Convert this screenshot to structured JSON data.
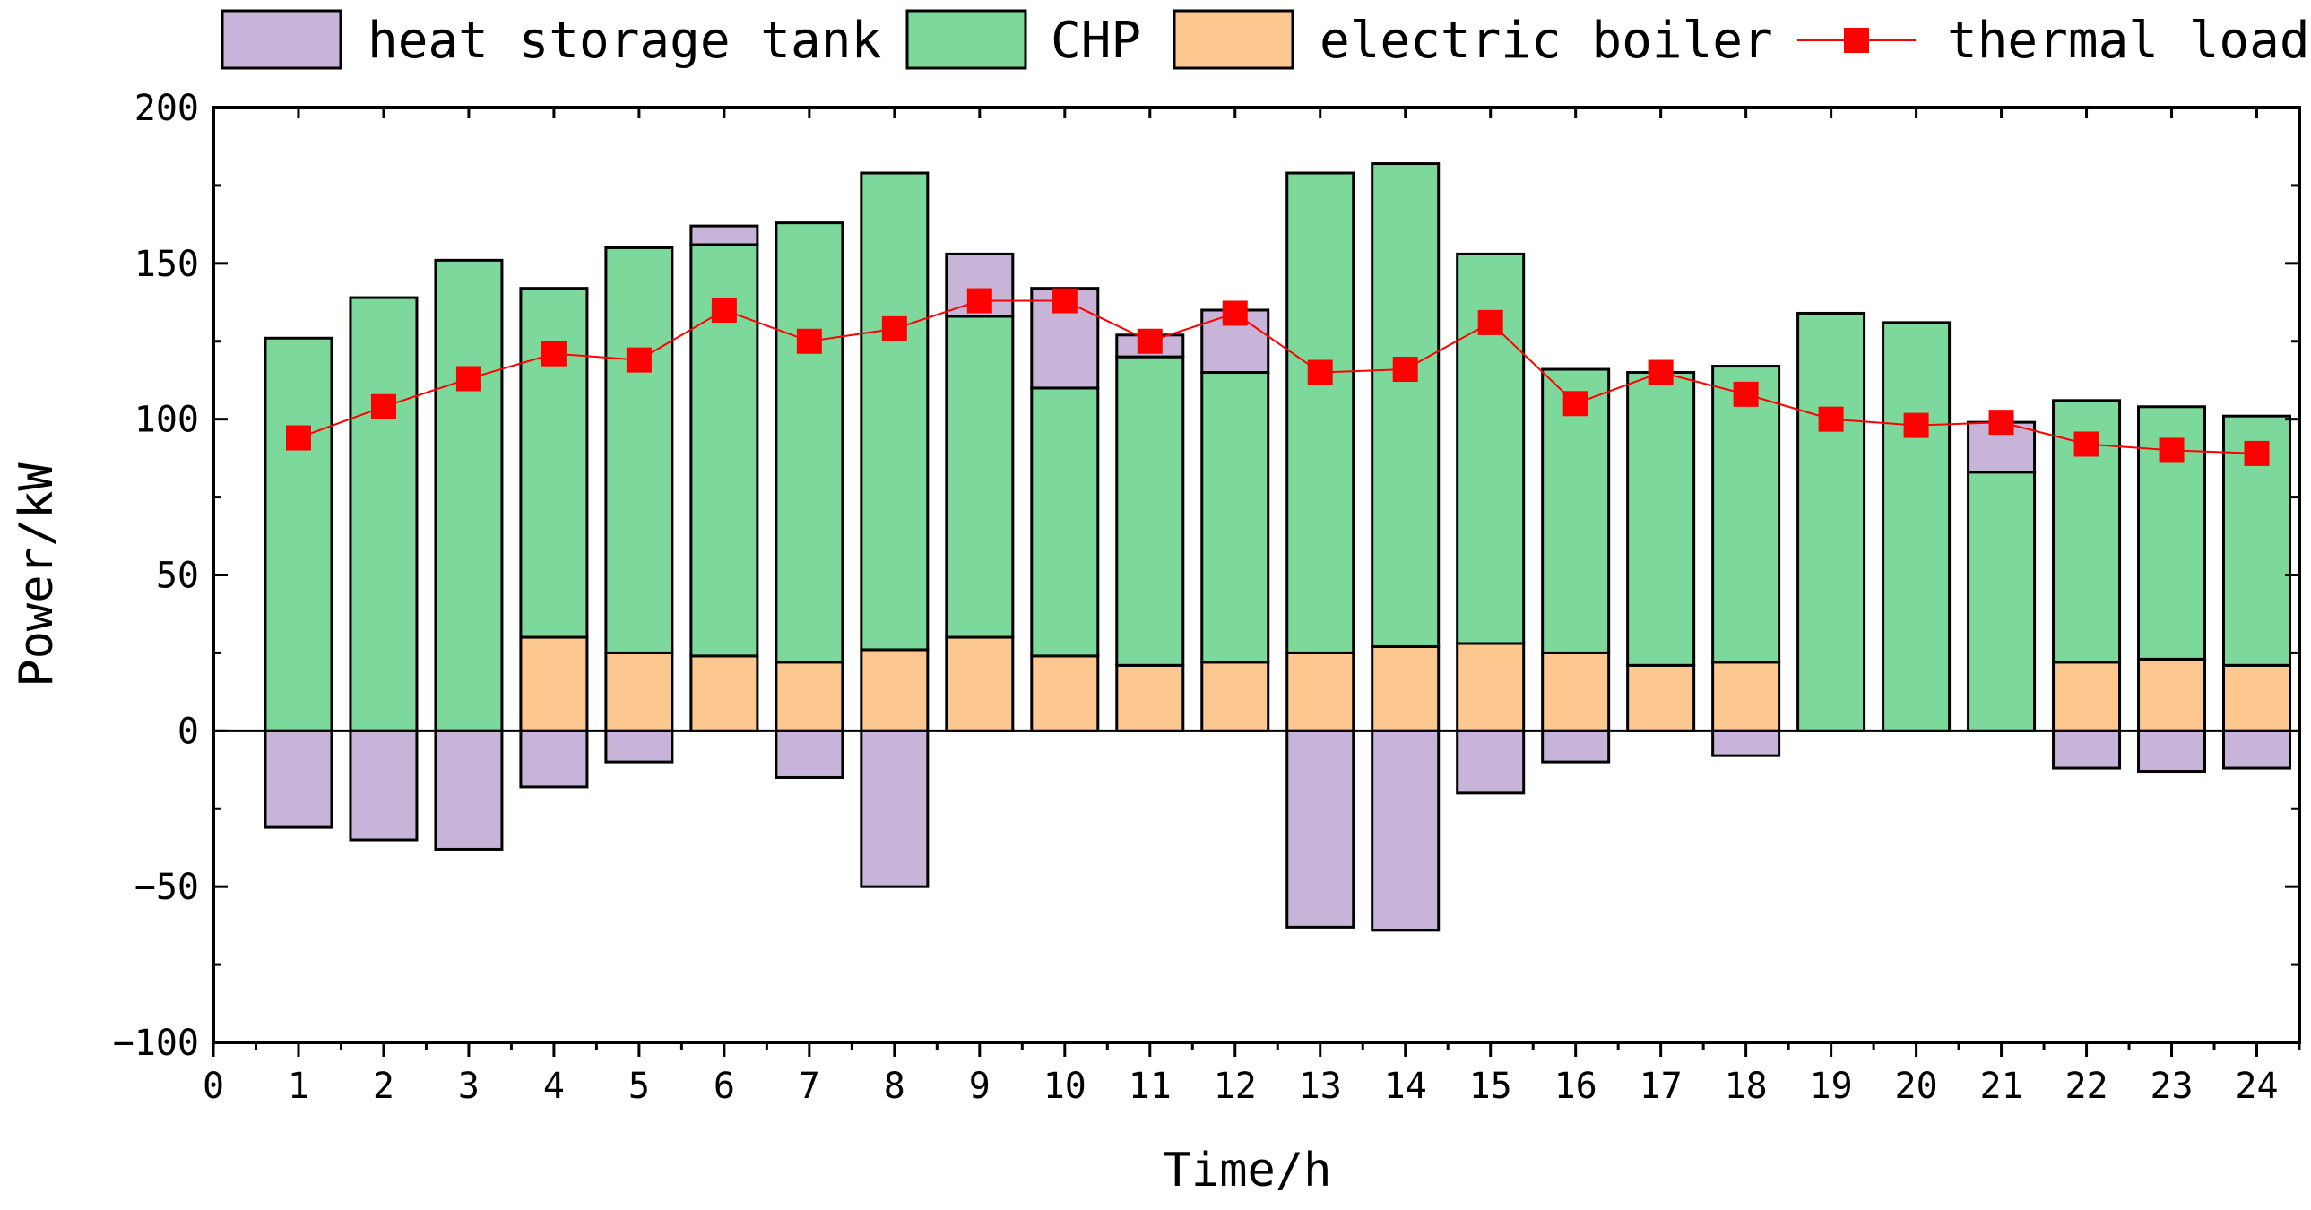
{
  "chart_data": {
    "type": "bar",
    "stacked": true,
    "xlabel": "Time/h",
    "ylabel": "Power/kW",
    "ylim": [
      -100,
      200
    ],
    "xlim": [
      0,
      24.5
    ],
    "yticks": [
      -100,
      -50,
      0,
      50,
      100,
      150,
      200
    ],
    "xticks": [
      0,
      1,
      2,
      3,
      4,
      5,
      6,
      7,
      8,
      9,
      10,
      11,
      12,
      13,
      14,
      15,
      16,
      17,
      18,
      19,
      20,
      21,
      22,
      23,
      24
    ],
    "ytick_labels": [
      "−100",
      "−50",
      "0",
      "50",
      "100",
      "150",
      "200"
    ],
    "xtick_labels": [
      "0",
      "1",
      "2",
      "3",
      "4",
      "5",
      "6",
      "7",
      "8",
      "9",
      "10",
      "11",
      "12",
      "13",
      "14",
      "15",
      "16",
      "17",
      "18",
      "19",
      "20",
      "21",
      "22",
      "23",
      "24"
    ],
    "categories": [
      1,
      2,
      3,
      4,
      5,
      6,
      7,
      8,
      9,
      10,
      11,
      12,
      13,
      14,
      15,
      16,
      17,
      18,
      19,
      20,
      21,
      22,
      23,
      24
    ],
    "legend_position": "top",
    "series": [
      {
        "name": "electric boiler",
        "kind": "bar",
        "color": "#fcc890",
        "values": [
          0,
          0,
          0,
          30,
          25,
          24,
          22,
          26,
          30,
          24,
          21,
          22,
          25,
          27,
          28,
          25,
          21,
          22,
          0,
          0,
          0,
          22,
          23,
          21
        ]
      },
      {
        "name": "CHP",
        "kind": "bar",
        "color": "#7dd99b",
        "values": [
          126,
          139,
          151,
          112,
          130,
          132,
          141,
          153,
          103,
          86,
          99,
          93,
          154,
          155,
          125,
          91,
          94,
          95,
          134,
          131,
          83,
          84,
          81,
          80
        ]
      },
      {
        "name": "heat storage tank",
        "kind": "bar",
        "color": "#c8b4d8",
        "positive": [
          0,
          0,
          0,
          0,
          0,
          6,
          0,
          0,
          20,
          32,
          7,
          20,
          0,
          0,
          0,
          0,
          0,
          0,
          0,
          0,
          16,
          0,
          0,
          0
        ],
        "negative": [
          -31,
          -35,
          -38,
          -18,
          -10,
          0,
          -15,
          -50,
          0,
          0,
          0,
          0,
          -63,
          -64,
          -20,
          -10,
          0,
          -8,
          0,
          0,
          0,
          -12,
          -13,
          -12
        ]
      },
      {
        "name": "thermal load",
        "kind": "line",
        "color": "#ff0000",
        "values": [
          94,
          104,
          113,
          121,
          119,
          135,
          125,
          129,
          138,
          138,
          125,
          134,
          115,
          116,
          131,
          105,
          115,
          108,
          100,
          98,
          99,
          92,
          90,
          89
        ]
      }
    ]
  }
}
